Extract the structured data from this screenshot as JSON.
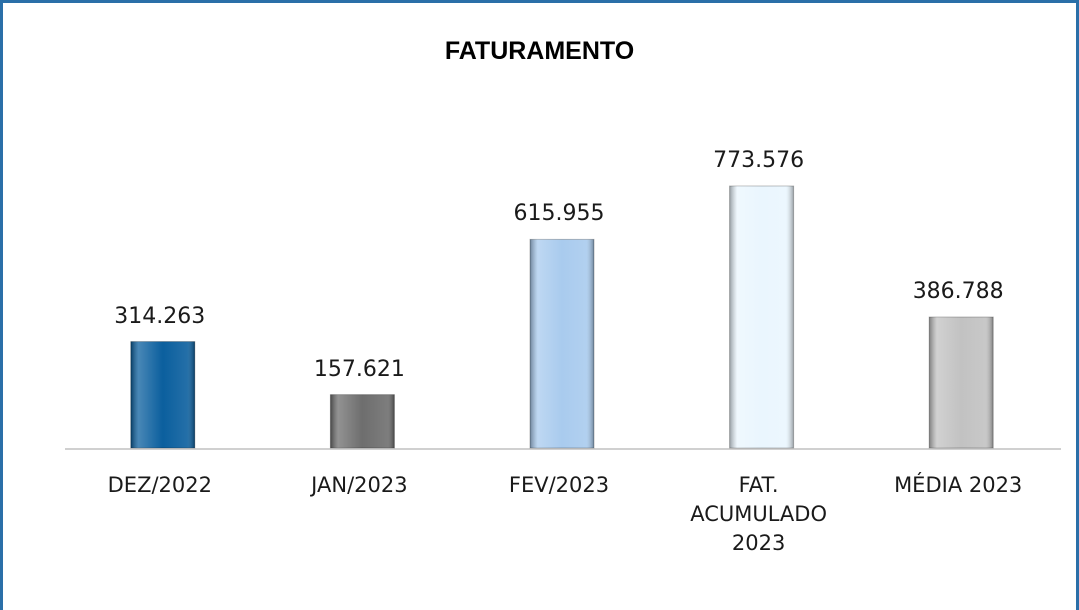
{
  "chart_data": {
    "type": "bar",
    "title": "FATURAMENTO",
    "categories": [
      "DEZ/2022",
      "JAN/2023",
      "FEV/2023",
      "FAT. ACUMULADO 2023",
      "MÉDIA 2023"
    ],
    "values": [
      314263,
      157621,
      615955,
      773576,
      386788
    ],
    "value_labels": [
      "314.263",
      "157.621",
      "615.955",
      "773.576",
      "386.788"
    ],
    "colors": [
      "#0b5f9e",
      "#6e6e6e",
      "#a9cbee",
      "#eaf6fe",
      "#c2c2c2"
    ]
  }
}
